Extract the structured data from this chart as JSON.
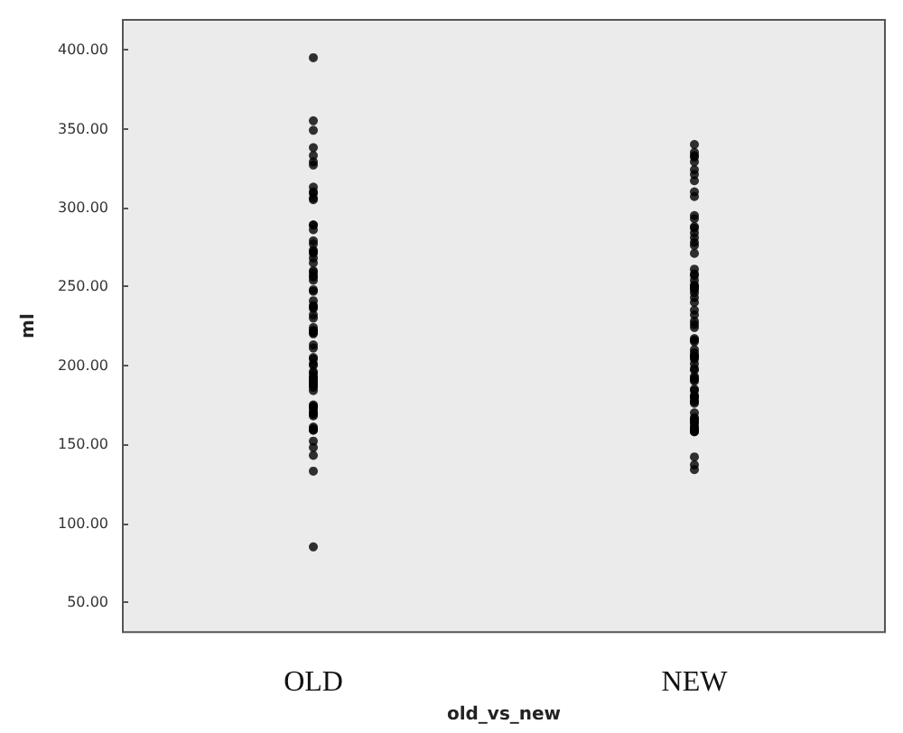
{
  "chart_data": {
    "type": "scatter",
    "xlabel": "old_vs_new",
    "ylabel": "ml",
    "categories": [
      "OLD",
      "NEW"
    ],
    "ylim": [
      31,
      419
    ],
    "yticks": [
      {
        "value": 50,
        "label": "50.00"
      },
      {
        "value": 100,
        "label": "100.00"
      },
      {
        "value": 150,
        "label": "150.00"
      },
      {
        "value": 200,
        "label": "200.00"
      },
      {
        "value": 250,
        "label": "250.00"
      },
      {
        "value": 300,
        "label": "300.00"
      },
      {
        "value": 350,
        "label": "350.00"
      },
      {
        "value": 400,
        "label": "400.00"
      }
    ],
    "grid": false,
    "marker": "circle",
    "series": [
      {
        "color": "#000000",
        "x": [
          "OLD",
          "OLD",
          "OLD",
          "OLD",
          "OLD",
          "OLD",
          "OLD",
          "OLD",
          "OLD",
          "OLD",
          "OLD",
          "OLD",
          "OLD",
          "OLD",
          "OLD",
          "OLD",
          "OLD",
          "OLD",
          "OLD",
          "OLD",
          "OLD",
          "OLD",
          "OLD",
          "OLD",
          "OLD",
          "OLD",
          "OLD",
          "OLD",
          "OLD",
          "OLD",
          "OLD",
          "OLD",
          "OLD",
          "OLD",
          "OLD",
          "OLD",
          "OLD",
          "OLD",
          "OLD",
          "OLD",
          "OLD",
          "OLD",
          "OLD",
          "OLD",
          "OLD",
          "OLD",
          "OLD",
          "OLD",
          "OLD",
          "OLD",
          "OLD",
          "OLD",
          "OLD",
          "OLD",
          "OLD",
          "OLD",
          "OLD",
          "OLD",
          "OLD",
          "OLD",
          "OLD",
          "OLD",
          "OLD",
          "OLD",
          "OLD",
          "OLD",
          "OLD",
          "OLD",
          "OLD",
          "OLD",
          "OLD",
          "OLD",
          "OLD",
          "OLD",
          "OLD"
        ],
        "values": [
          395,
          355,
          349,
          338,
          333,
          329,
          327,
          313,
          310,
          309,
          305,
          306,
          289,
          289,
          286,
          279,
          277,
          273,
          271,
          272,
          268,
          265,
          260,
          259,
          257,
          256,
          254,
          248,
          247,
          241,
          238,
          237,
          236,
          232,
          230,
          224,
          222,
          221,
          221,
          222,
          220,
          213,
          211,
          205,
          204,
          201,
          200,
          196,
          195,
          193,
          192,
          191,
          190,
          189,
          188,
          187,
          186,
          184,
          175,
          174,
          174,
          173,
          171,
          170,
          169,
          168,
          161,
          160,
          159,
          159,
          152,
          148,
          143,
          133,
          85
        ]
      },
      {
        "color": "#000000",
        "x": [
          "NEW",
          "NEW",
          "NEW",
          "NEW",
          "NEW",
          "NEW",
          "NEW",
          "NEW",
          "NEW",
          "NEW",
          "NEW",
          "NEW",
          "NEW",
          "NEW",
          "NEW",
          "NEW",
          "NEW",
          "NEW",
          "NEW",
          "NEW",
          "NEW",
          "NEW",
          "NEW",
          "NEW",
          "NEW",
          "NEW",
          "NEW",
          "NEW",
          "NEW",
          "NEW",
          "NEW",
          "NEW",
          "NEW",
          "NEW",
          "NEW",
          "NEW",
          "NEW",
          "NEW",
          "NEW",
          "NEW",
          "NEW",
          "NEW",
          "NEW",
          "NEW",
          "NEW",
          "NEW",
          "NEW",
          "NEW",
          "NEW",
          "NEW",
          "NEW",
          "NEW",
          "NEW",
          "NEW",
          "NEW",
          "NEW",
          "NEW",
          "NEW",
          "NEW",
          "NEW",
          "NEW",
          "NEW",
          "NEW",
          "NEW",
          "NEW",
          "NEW",
          "NEW",
          "NEW",
          "NEW",
          "NEW",
          "NEW",
          "NEW",
          "NEW",
          "NEW",
          "NEW"
        ],
        "values": [
          340,
          335,
          333,
          332,
          329,
          324,
          321,
          317,
          310,
          307,
          295,
          293,
          288,
          287,
          284,
          281,
          278,
          276,
          271,
          261,
          258,
          257,
          254,
          251,
          250,
          250,
          249,
          248,
          246,
          243,
          240,
          235,
          232,
          228,
          226,
          224,
          217,
          216,
          215,
          210,
          208,
          206,
          206,
          205,
          204,
          201,
          198,
          197,
          193,
          192,
          191,
          190,
          185,
          184,
          181,
          180,
          180,
          178,
          177,
          176,
          170,
          167,
          166,
          165,
          164,
          163,
          161,
          160,
          160,
          159,
          158,
          158,
          142,
          137,
          134
        ]
      }
    ]
  }
}
